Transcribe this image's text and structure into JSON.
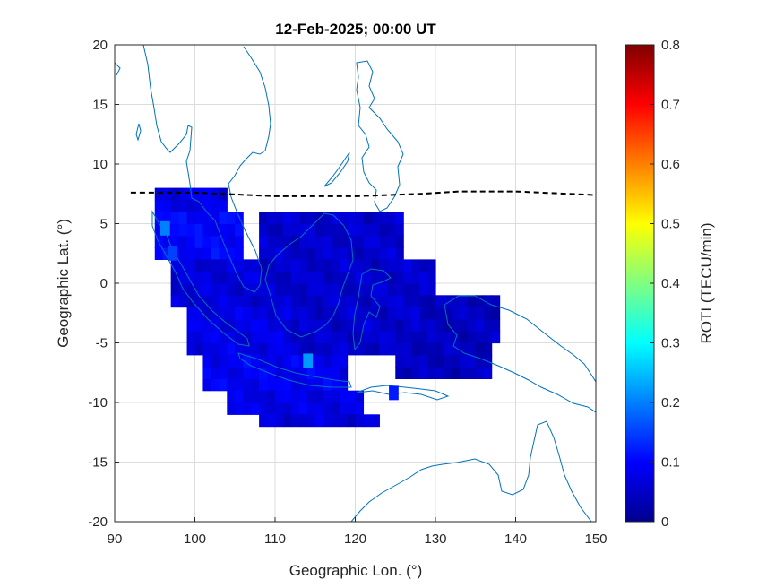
{
  "chart_data": {
    "type": "heatmap",
    "title": "12-Feb-2025; 00:00 UT",
    "xlabel": "Geographic Lon. (°)",
    "ylabel": "Geographic Lat. (°)",
    "xlim": [
      90,
      150
    ],
    "ylim": [
      -20,
      20
    ],
    "x_ticks": [
      "90",
      "100",
      "110",
      "120",
      "130",
      "140",
      "150"
    ],
    "y_ticks": [
      "20",
      "15",
      "10",
      "5",
      "0",
      "-5",
      "-10",
      "-15",
      "-20"
    ],
    "grid": true,
    "colormap": "jet",
    "colorbar": {
      "label": "ROTI (TECU/min)",
      "range": [
        0,
        0.8
      ],
      "ticks": [
        "0.8",
        "0.7",
        "0.6",
        "0.5",
        "0.4",
        "0.3",
        "0.2",
        "0.1",
        "0"
      ]
    },
    "coastline_color": "#0072BD",
    "magnetic_equator": {
      "style": "dashed",
      "color": "#000000",
      "points": [
        [
          92,
          7.6
        ],
        [
          100,
          7.6
        ],
        [
          110,
          7.3
        ],
        [
          120,
          7.3
        ],
        [
          128,
          7.5
        ],
        [
          133,
          7.7
        ],
        [
          140,
          7.7
        ],
        [
          150,
          7.4
        ]
      ]
    },
    "roti_regions": [
      {
        "lat": [
          6,
          8
        ],
        "lon": [
          95,
          104
        ],
        "value": 0.08
      },
      {
        "lat": [
          2,
          6
        ],
        "lon": [
          95,
          106
        ],
        "value": 0.1
      },
      {
        "lat": [
          -2,
          2
        ],
        "lon": [
          97,
          110
        ],
        "value": 0.07
      },
      {
        "lat": [
          -6,
          -2
        ],
        "lon": [
          99,
          113
        ],
        "value": 0.08
      },
      {
        "lat": [
          -9,
          -6
        ],
        "lon": [
          101,
          119
        ],
        "value": 0.09
      },
      {
        "lat": [
          -11,
          -9
        ],
        "lon": [
          104,
          121
        ],
        "value": 0.08
      },
      {
        "lat": [
          -12,
          -11
        ],
        "lon": [
          108,
          123
        ],
        "value": 0.07
      },
      {
        "lat": [
          2,
          6
        ],
        "lon": [
          108,
          126
        ],
        "value": 0.06
      },
      {
        "lat": [
          -2,
          2
        ],
        "lon": [
          108,
          130
        ],
        "value": 0.06
      },
      {
        "lat": [
          -6,
          -2
        ],
        "lon": [
          112,
          128
        ],
        "value": 0.06
      },
      {
        "lat": [
          -5,
          -1
        ],
        "lon": [
          128,
          138
        ],
        "value": 0.05
      },
      {
        "lat": [
          -8,
          -5
        ],
        "lon": [
          125,
          137
        ],
        "value": 0.05
      }
    ],
    "roti_hotspots": [
      {
        "lat": 4.6,
        "lon": 96.3,
        "value": 0.2
      },
      {
        "lat": -6.5,
        "lon": 114.1,
        "value": 0.22
      },
      {
        "lat": 2.5,
        "lon": 97.2,
        "value": 0.15
      },
      {
        "lat": -9.2,
        "lon": 124.8,
        "value": 0.12
      }
    ]
  }
}
